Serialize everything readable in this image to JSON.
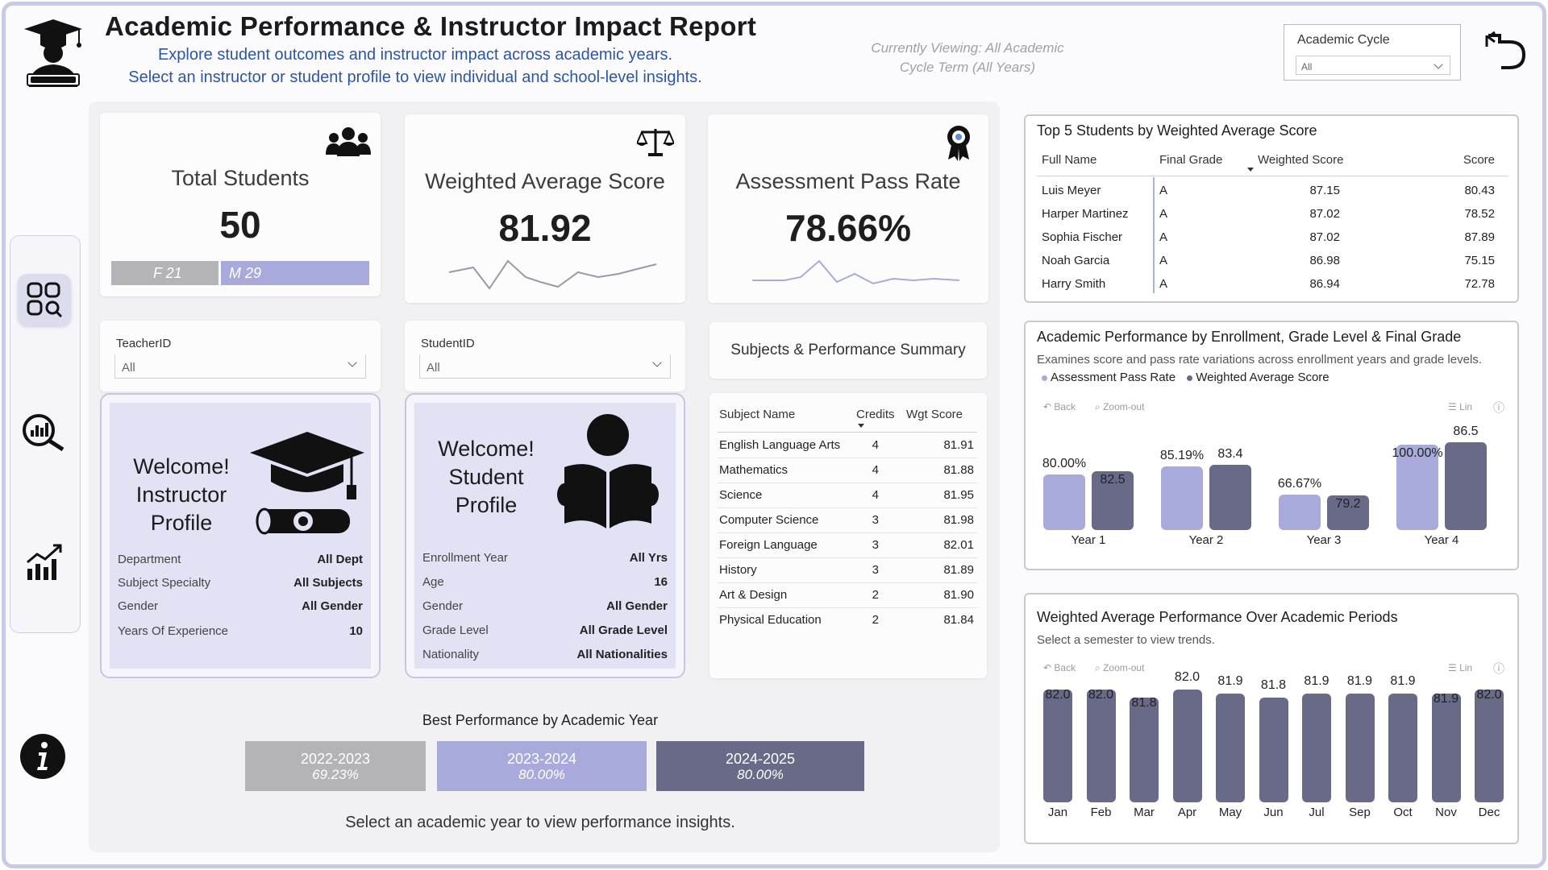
{
  "header": {
    "title": "Academic Performance & Instructor Impact Report",
    "subtitle_1": "Explore student outcomes and instructor impact across academic years.",
    "subtitle_2": "Select an instructor or student profile to view individual and school-level insights.",
    "viewing_1": "Currently Viewing: All Academic",
    "viewing_2": "Cycle Term (All Years)",
    "cycle_label": "Academic Cycle",
    "cycle_value": "All"
  },
  "kpis": {
    "total_students": {
      "title": "Total Students",
      "value": "50",
      "female_label": "F 21",
      "male_label": "M 29",
      "female": 21,
      "male": 29
    },
    "weighted_avg": {
      "title": "Weighted Average Score",
      "value": "81.92"
    },
    "pass_rate": {
      "title": "Assessment Pass Rate",
      "value": "78.66%"
    }
  },
  "slicers": {
    "teacher": {
      "label": "TeacherID",
      "value": "All"
    },
    "student": {
      "label": "StudentID",
      "value": "All"
    },
    "summary_button": "Subjects & Performance Summary"
  },
  "instructor_profile": {
    "line1": "Welcome!",
    "line2": "Instructor",
    "line3": "Profile",
    "rows": [
      {
        "k": "Department",
        "v": "All Dept"
      },
      {
        "k": "Subject Specialty",
        "v": "All Subjects"
      },
      {
        "k": "Gender",
        "v": "All Gender"
      },
      {
        "k": "Years Of Experience",
        "v": "10"
      }
    ]
  },
  "student_profile": {
    "line1": "Welcome!",
    "line2": "Student",
    "line3": "Profile",
    "rows": [
      {
        "k": "Enrollment Year",
        "v": "All Yrs"
      },
      {
        "k": "Age",
        "v": "16"
      },
      {
        "k": "Gender",
        "v": "All Gender"
      },
      {
        "k": "Grade Level",
        "v": "All Grade Level"
      },
      {
        "k": "Nationality",
        "v": "All Nationalities"
      }
    ]
  },
  "subjects_table": {
    "headers": [
      "Subject Name",
      "Credits",
      "Wgt Score"
    ],
    "rows": [
      [
        "English Language Arts",
        "4",
        "81.91"
      ],
      [
        "Mathematics",
        "4",
        "81.88"
      ],
      [
        "Science",
        "4",
        "81.95"
      ],
      [
        "Computer Science",
        "3",
        "81.98"
      ],
      [
        "Foreign Language",
        "3",
        "82.01"
      ],
      [
        "History",
        "3",
        "81.89"
      ],
      [
        "Art & Design",
        "2",
        "81.90"
      ],
      [
        "Physical Education",
        "2",
        "81.84"
      ]
    ]
  },
  "best_performance": {
    "title": "Best Performance by Academic Year",
    "years": [
      {
        "year": "2022-2023",
        "pct": "69.23%",
        "color": "#b3b3b8"
      },
      {
        "year": "2023-2024",
        "pct": "80.00%",
        "color": "#a7aadb"
      },
      {
        "year": "2024-2025",
        "pct": "80.00%",
        "color": "#686a88"
      }
    ],
    "caption": "Select an academic year to view performance insights."
  },
  "top_students": {
    "title": "Top 5 Students by Weighted Average Score",
    "headers": [
      "Full Name",
      "Final Grade",
      "Weighted Score",
      "Score"
    ],
    "rows": [
      [
        "Luis Meyer",
        "A",
        "87.15",
        "80.43"
      ],
      [
        "Harper Martinez",
        "A",
        "87.02",
        "78.52"
      ],
      [
        "Sophia Fischer",
        "A",
        "87.02",
        "87.89"
      ],
      [
        "Noah Garcia",
        "A",
        "86.98",
        "75.15"
      ],
      [
        "Harry Smith",
        "A",
        "86.94",
        "72.78"
      ]
    ]
  },
  "enroll_panel": {
    "title": "Academic Performance by Enrollment, Grade Level & Final Grade",
    "subtitle": "Examines score and pass rate variations across enrollment years and grade levels.",
    "legend_pass": "Assessment Pass Rate",
    "legend_wavg": "Weighted Average Score",
    "back": "Back",
    "zoom": "Zoom-out",
    "lin": "Lin"
  },
  "period_panel": {
    "title": "Weighted Average Performance Over Academic Periods",
    "subtitle": "Select a semester to view trends.",
    "back": "Back",
    "zoom": "Zoom-out",
    "lin": "Lin"
  },
  "chart_data": [
    {
      "type": "bar",
      "categories": [
        "Year 1",
        "Year 2",
        "Year 3",
        "Year 4"
      ],
      "series": [
        {
          "name": "Assessment Pass Rate",
          "values": [
            80.0,
            85.19,
            66.67,
            100.0
          ],
          "labels": [
            "80.00%",
            "85.19%",
            "66.67%",
            "100.00%"
          ],
          "color": "#a7aadb"
        },
        {
          "name": "Weighted Average Score",
          "values": [
            82.5,
            83.4,
            79.2,
            86.5
          ],
          "labels": [
            "82.5",
            "83.4",
            "79.2",
            "86.5"
          ],
          "color": "#686a88"
        }
      ]
    },
    {
      "type": "bar",
      "categories": [
        "Jan",
        "Feb",
        "Mar",
        "Apr",
        "May",
        "Jun",
        "Jul",
        "Sep",
        "Oct",
        "Nov",
        "Dec"
      ],
      "values": [
        82.0,
        82.0,
        81.8,
        82.0,
        81.9,
        81.8,
        81.9,
        81.9,
        81.9,
        81.9,
        82.0
      ],
      "labels": [
        "82.0",
        "82.0",
        "81.8",
        "82.0",
        "81.9",
        "81.8",
        "81.9",
        "81.9",
        "81.9",
        "81.9",
        "82.0"
      ],
      "color": "#686a88"
    }
  ]
}
